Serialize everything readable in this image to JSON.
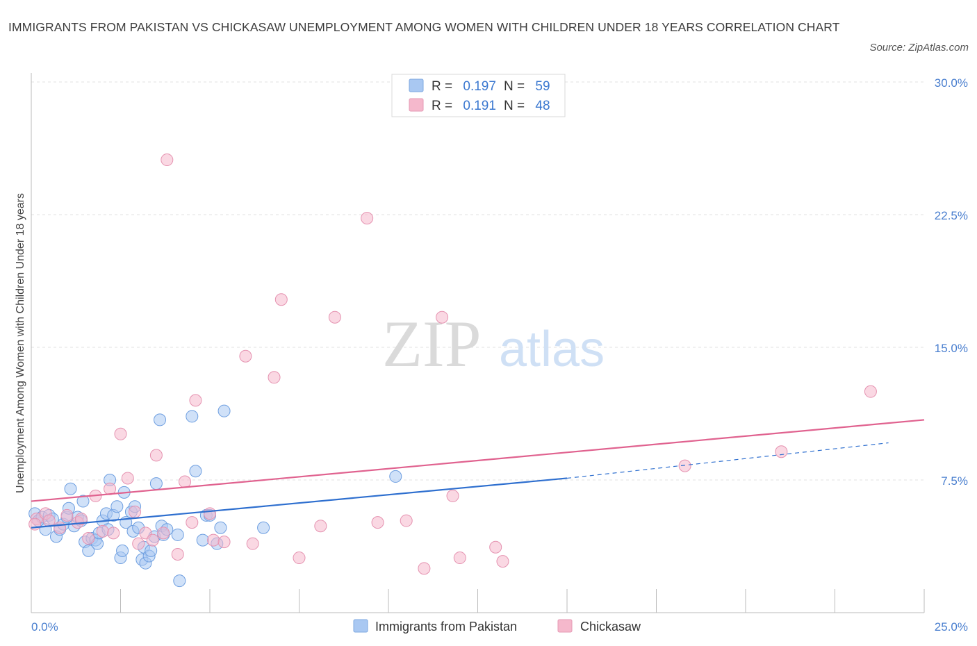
{
  "chart_data": {
    "type": "scatter",
    "title": "IMMIGRANTS FROM PAKISTAN VS CHICKASAW UNEMPLOYMENT AMONG WOMEN WITH CHILDREN UNDER 18 YEARS CORRELATION CHART",
    "source": "Source: ZipAtlas.com",
    "ylabel": "Unemployment Among Women with Children Under 18 years",
    "xlim": [
      0,
      25
    ],
    "ylim": [
      0,
      30
    ],
    "x_tick_labels": [
      "0.0%",
      "25.0%"
    ],
    "y_ticks": [
      7.5,
      15,
      22.5,
      30
    ],
    "y_tick_labels": [
      "7.5%",
      "15.0%",
      "22.5%",
      "30.0%"
    ],
    "grid": "horizontal dashed",
    "watermark": {
      "zip": "ZIP",
      "atlas": "atlas"
    },
    "stats_legend": [
      {
        "r_label": "R = ",
        "r_value": "0.197",
        "n_label": "N = ",
        "n_value": "59"
      },
      {
        "r_label": "R = ",
        "r_value": "0.191",
        "n_label": "N = ",
        "n_value": "48"
      }
    ],
    "colors": {
      "pakistan": "#a9c8f2",
      "pakistan_line": "#2e6fcf",
      "chickasaw": "#f5b8cc",
      "chickasaw_line": "#e0628f"
    },
    "series": [
      {
        "name": "Immigrants from Pakistan",
        "trend": {
          "x0": 0,
          "y0": 4.8,
          "x1": 15,
          "y1": 7.6,
          "dash_to_x": 24,
          "dash_to_y": 9.6
        },
        "points": [
          [
            0.1,
            5.6
          ],
          [
            0.2,
            5.2
          ],
          [
            0.3,
            5.4
          ],
          [
            0.4,
            4.7
          ],
          [
            0.5,
            5.5
          ],
          [
            0.6,
            5.3
          ],
          [
            0.7,
            4.3
          ],
          [
            0.8,
            4.7
          ],
          [
            0.9,
            5.0
          ],
          [
            1.0,
            5.4
          ],
          [
            1.05,
            5.9
          ],
          [
            1.1,
            7.0
          ],
          [
            1.2,
            4.9
          ],
          [
            1.3,
            5.4
          ],
          [
            1.4,
            5.2
          ],
          [
            1.45,
            6.3
          ],
          [
            1.5,
            4.0
          ],
          [
            1.6,
            3.5
          ],
          [
            1.7,
            4.2
          ],
          [
            1.8,
            4.1
          ],
          [
            1.85,
            3.9
          ],
          [
            1.9,
            4.5
          ],
          [
            2.0,
            5.2
          ],
          [
            2.1,
            5.6
          ],
          [
            2.15,
            4.7
          ],
          [
            2.2,
            7.5
          ],
          [
            2.3,
            5.5
          ],
          [
            2.4,
            6.0
          ],
          [
            2.5,
            3.1
          ],
          [
            2.55,
            3.5
          ],
          [
            2.6,
            6.8
          ],
          [
            2.65,
            5.1
          ],
          [
            2.8,
            5.7
          ],
          [
            2.85,
            4.6
          ],
          [
            2.9,
            6.0
          ],
          [
            3.0,
            4.8
          ],
          [
            3.1,
            3.0
          ],
          [
            3.15,
            3.7
          ],
          [
            3.2,
            2.8
          ],
          [
            3.3,
            3.2
          ],
          [
            3.35,
            3.5
          ],
          [
            3.45,
            4.3
          ],
          [
            3.5,
            7.3
          ],
          [
            3.6,
            10.9
          ],
          [
            3.65,
            4.9
          ],
          [
            3.7,
            4.4
          ],
          [
            3.8,
            4.7
          ],
          [
            4.1,
            4.4
          ],
          [
            4.15,
            1.8
          ],
          [
            4.5,
            11.1
          ],
          [
            4.6,
            8.0
          ],
          [
            4.8,
            4.1
          ],
          [
            4.9,
            5.5
          ],
          [
            5.0,
            5.5
          ],
          [
            5.3,
            4.8
          ],
          [
            5.4,
            11.4
          ],
          [
            5.2,
            3.9
          ],
          [
            6.5,
            4.8
          ],
          [
            10.2,
            7.7
          ]
        ]
      },
      {
        "name": "Chickasaw",
        "trend": {
          "x0": 0,
          "y0": 6.3,
          "x1": 25,
          "y1": 10.9
        },
        "points": [
          [
            0.15,
            5.3
          ],
          [
            0.4,
            5.6
          ],
          [
            0.5,
            5.2
          ],
          [
            0.8,
            4.8
          ],
          [
            1.0,
            5.5
          ],
          [
            1.3,
            5.1
          ],
          [
            1.6,
            4.2
          ],
          [
            1.8,
            6.6
          ],
          [
            2.0,
            4.6
          ],
          [
            2.2,
            7.0
          ],
          [
            2.3,
            4.5
          ],
          [
            2.5,
            10.1
          ],
          [
            2.7,
            7.6
          ],
          [
            2.9,
            5.7
          ],
          [
            3.0,
            3.9
          ],
          [
            3.2,
            4.5
          ],
          [
            3.4,
            4.1
          ],
          [
            3.5,
            8.9
          ],
          [
            3.7,
            4.5
          ],
          [
            3.8,
            25.6
          ],
          [
            4.1,
            3.3
          ],
          [
            4.3,
            7.4
          ],
          [
            4.5,
            5.1
          ],
          [
            4.6,
            12.0
          ],
          [
            5.0,
            5.6
          ],
          [
            5.1,
            4.1
          ],
          [
            5.4,
            4.0
          ],
          [
            6.0,
            14.5
          ],
          [
            6.2,
            3.9
          ],
          [
            6.8,
            13.3
          ],
          [
            7.0,
            17.7
          ],
          [
            7.5,
            3.1
          ],
          [
            8.1,
            4.9
          ],
          [
            8.5,
            16.7
          ],
          [
            9.4,
            22.3
          ],
          [
            9.7,
            5.1
          ],
          [
            10.5,
            5.2
          ],
          [
            11.0,
            2.5
          ],
          [
            11.5,
            16.7
          ],
          [
            11.8,
            6.6
          ],
          [
            12.0,
            3.1
          ],
          [
            13.0,
            3.7
          ],
          [
            13.2,
            2.9
          ],
          [
            18.3,
            8.3
          ],
          [
            21.0,
            9.1
          ],
          [
            23.5,
            12.5
          ],
          [
            0.1,
            5.0
          ],
          [
            1.4,
            5.3
          ]
        ]
      }
    ]
  }
}
